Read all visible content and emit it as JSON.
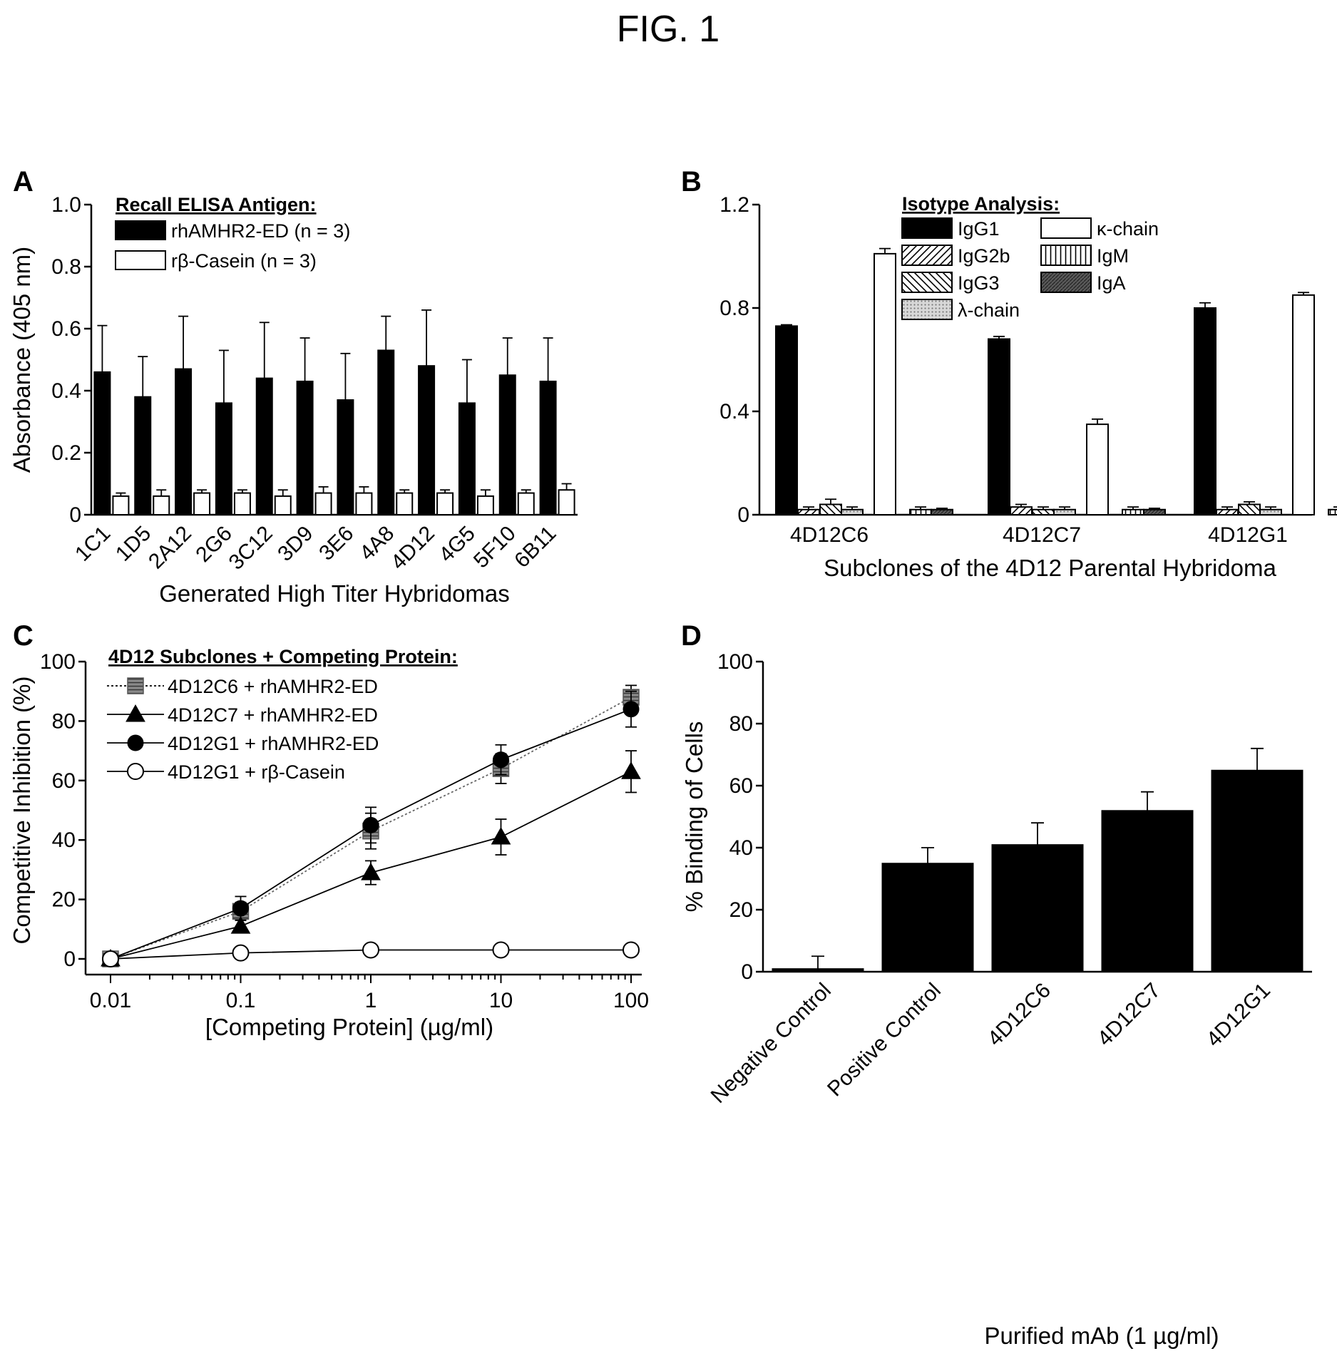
{
  "figure_title": "FIG. 1",
  "colors": {
    "ink": "#000000",
    "paper": "#ffffff",
    "light_gray": "#c8c8c8",
    "mid_gray": "#8a8a8a",
    "dark_gray": "#4a4a4a"
  },
  "chart_data": [
    {
      "panel": "A",
      "type": "bar",
      "xlabel": "Generated High Titer Hybridomas",
      "ylabel": "Absorbance (405 nm)",
      "ylim": [
        0,
        1.0
      ],
      "yticks": [
        "0",
        "0.2",
        "0.4",
        "0.6",
        "0.8",
        "1.0"
      ],
      "legend_title": "Recall ELISA Antigen:",
      "legend_placement": "top-left",
      "categories": [
        "1C1",
        "1D5",
        "2A12",
        "2G6",
        "3C12",
        "3D9",
        "3E6",
        "4A8",
        "4D12",
        "4G5",
        "5F10",
        "6B11"
      ],
      "series": [
        {
          "name": "rhAMHR2-ED (n = 3)",
          "fill": "black",
          "values": [
            0.46,
            0.38,
            0.47,
            0.36,
            0.44,
            0.43,
            0.37,
            0.53,
            0.48,
            0.36,
            0.45,
            0.43
          ],
          "errors": [
            0.15,
            0.13,
            0.17,
            0.17,
            0.18,
            0.14,
            0.15,
            0.11,
            0.18,
            0.14,
            0.12,
            0.14
          ]
        },
        {
          "name": "rβ-Casein (n = 3)",
          "fill": "white",
          "values": [
            0.06,
            0.06,
            0.07,
            0.07,
            0.06,
            0.07,
            0.07,
            0.07,
            0.07,
            0.06,
            0.07,
            0.08
          ],
          "errors": [
            0.01,
            0.02,
            0.01,
            0.01,
            0.02,
            0.02,
            0.02,
            0.01,
            0.01,
            0.02,
            0.01,
            0.02
          ]
        }
      ]
    },
    {
      "panel": "B",
      "type": "bar",
      "xlabel": "Subclones of the 4D12 Parental Hybridoma",
      "ylabel": "",
      "ylim": [
        0,
        1.2
      ],
      "yticks": [
        "0",
        "0.4",
        "0.8",
        "1.2"
      ],
      "legend_title": "Isotype Analysis:",
      "legend_placement": "top-right",
      "categories": [
        "4D12C6",
        "4D12C7",
        "4D12G1"
      ],
      "series": [
        {
          "name": "IgG1",
          "fill": "black",
          "values": [
            0.73,
            0.68,
            0.8
          ],
          "errors": [
            0.005,
            0.01,
            0.02
          ]
        },
        {
          "name": "IgG2b",
          "fill": "diag-right",
          "values": [
            0.02,
            0.03,
            0.02
          ],
          "errors": [
            0.01,
            0.01,
            0.01
          ]
        },
        {
          "name": "IgG3",
          "fill": "diag-left",
          "values": [
            0.04,
            0.02,
            0.04
          ],
          "errors": [
            0.02,
            0.01,
            0.01
          ]
        },
        {
          "name": "κ-chain",
          "fill": "white",
          "values": [
            1.01,
            0.35,
            0.85
          ],
          "errors": [
            0.02,
            0.02,
            0.01
          ]
        },
        {
          "name": "IgM",
          "fill": "vertical",
          "values": [
            0.02,
            0.02,
            0.02
          ],
          "errors": [
            0.01,
            0.01,
            0.01
          ]
        },
        {
          "name": "λ-chain",
          "fill": "dots",
          "values": [
            0.02,
            0.02,
            0.02
          ],
          "errors": [
            0.01,
            0.01,
            0.01
          ]
        },
        {
          "name": "IgA",
          "fill": "dark-cross",
          "values": [
            0.02,
            0.02,
            0.02
          ],
          "errors": [
            0.005,
            0.005,
            0.005
          ]
        }
      ]
    },
    {
      "panel": "C",
      "type": "line",
      "xscale": "log",
      "xlabel": "[Competing Protein] (µg/ml)",
      "ylabel": "Competitive Inhibition (%)",
      "xlim": [
        0.01,
        100
      ],
      "ylim": [
        0,
        100
      ],
      "xticks": [
        "0.01",
        "0.1",
        "1",
        "10",
        "100"
      ],
      "yticks": [
        "0",
        "20",
        "40",
        "60",
        "80",
        "100"
      ],
      "legend_title": "4D12 Subclones + Competing Protein:",
      "legend_placement": "top-left",
      "x": [
        0.01,
        0.1,
        1,
        10,
        100
      ],
      "series": [
        {
          "name": "4D12C6 + rhAMHR2-ED",
          "marker": "hatched-square",
          "line": "dotted",
          "values": [
            0,
            16,
            43,
            64,
            88
          ],
          "errors": [
            0,
            3,
            6,
            5,
            4
          ]
        },
        {
          "name": "4D12C7 + rhAMHR2-ED",
          "marker": "filled-triangle",
          "line": "solid",
          "values": [
            0,
            11,
            29,
            41,
            63
          ],
          "errors": [
            0,
            2,
            4,
            6,
            7
          ]
        },
        {
          "name": "4D12G1 + rhAMHR2-ED",
          "marker": "filled-circle",
          "line": "solid",
          "values": [
            0,
            17,
            45,
            67,
            84
          ],
          "errors": [
            0,
            4,
            6,
            5,
            6
          ]
        },
        {
          "name": "4D12G1 + rβ-Casein",
          "marker": "open-circle",
          "line": "solid",
          "values": [
            0,
            2,
            3,
            3,
            3
          ],
          "errors": [
            0,
            1,
            1,
            1,
            1
          ]
        }
      ]
    },
    {
      "panel": "D",
      "type": "bar",
      "xlabel": "Purified mAb (1 µg/ml)",
      "ylabel": "% Binding of Cells",
      "ylim": [
        0,
        100
      ],
      "yticks": [
        "0",
        "20",
        "40",
        "60",
        "80",
        "100"
      ],
      "categories": [
        "Negative Control",
        "Positive Control",
        "4D12C6",
        "4D12C7",
        "4D12G1"
      ],
      "values": [
        1,
        35,
        41,
        52,
        65
      ],
      "errors": [
        4,
        5,
        7,
        6,
        7
      ]
    }
  ]
}
